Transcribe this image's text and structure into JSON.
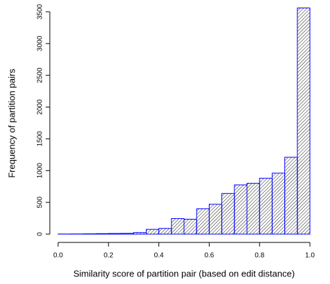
{
  "chart_data": {
    "type": "histogram",
    "x_label": "Similarity score of partition pair (based on edit distance)",
    "y_label": "Frequency of partition pairs",
    "bins": [
      0,
      0.05,
      0.1,
      0.15,
      0.2,
      0.25,
      0.3,
      0.35,
      0.4,
      0.45,
      0.5,
      0.55,
      0.6,
      0.65,
      0.7,
      0.75,
      0.8,
      0.85,
      0.9,
      0.95,
      1
    ],
    "values": [
      2,
      3,
      5,
      8,
      10,
      12,
      25,
      75,
      90,
      245,
      235,
      400,
      470,
      640,
      775,
      800,
      880,
      960,
      1210,
      3560
    ],
    "border_color": "#0000ff",
    "fill": "hatched",
    "xlim": [
      0,
      1
    ],
    "xticks": [
      {
        "value": 0,
        "label": "0.0"
      },
      0.2,
      0.4,
      0.6,
      0.8,
      {
        "value": 1,
        "label": "1.0"
      }
    ],
    "ylim": [
      0,
      3500
    ],
    "yticks": [
      0,
      500,
      1000,
      1500,
      2000,
      2500,
      3000,
      3500
    ]
  }
}
